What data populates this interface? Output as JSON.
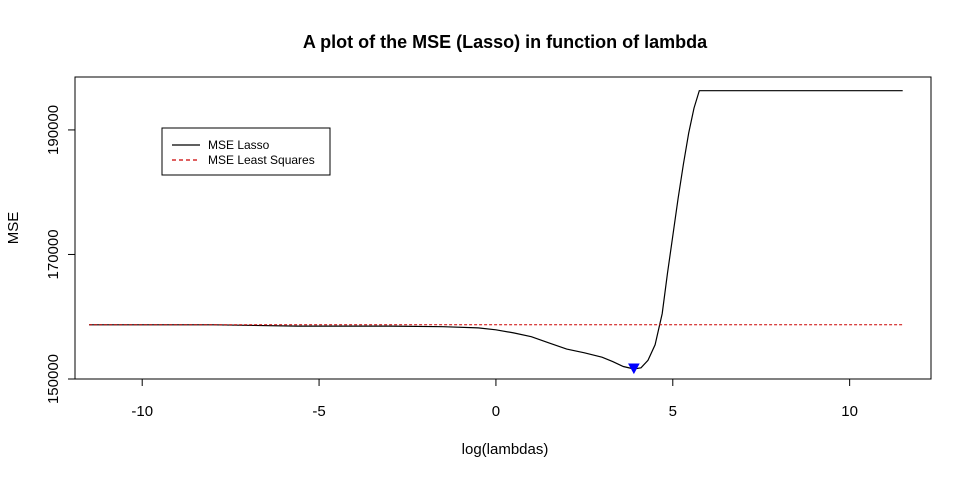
{
  "chart_data": {
    "type": "line",
    "title": "A plot of the MSE (Lasso) in function of lambda",
    "xlabel": "log(lambdas)",
    "ylabel": "MSE",
    "xlim": [
      -11.9,
      12.3
    ],
    "ylim": [
      150000,
      198500
    ],
    "xticks": [
      -10,
      -5,
      0,
      5,
      10
    ],
    "xtick_labels": [
      "-10",
      "-5",
      "0",
      "5",
      "10"
    ],
    "yticks": [
      150000,
      170000,
      190000
    ],
    "ytick_labels": [
      "150000",
      "170000",
      "190000"
    ],
    "grid": false,
    "legend_position": "top-left",
    "legend": [
      {
        "label": "MSE Lasso",
        "color": "#000000",
        "style": "solid"
      },
      {
        "label": "MSE Least Squares",
        "color": "#cc0000",
        "style": "dashed"
      }
    ],
    "series": [
      {
        "name": "MSE Lasso",
        "color": "#000000",
        "style": "solid",
        "x": [
          -11.5,
          -8,
          -5.6,
          -3,
          -1.5,
          -0.5,
          0,
          0.5,
          1,
          1.5,
          2,
          2.5,
          3,
          3.3,
          3.6,
          3.9,
          4.1,
          4.3,
          4.5,
          4.7,
          4.85,
          5,
          5.15,
          5.3,
          5.45,
          5.6,
          5.75,
          6,
          8,
          10,
          11.5
        ],
        "y": [
          158700,
          158700,
          158500,
          158500,
          158400,
          158200,
          157900,
          157400,
          156800,
          155800,
          154800,
          154200,
          153500,
          152800,
          152000,
          151600,
          151800,
          153000,
          155500,
          160500,
          167000,
          173000,
          179000,
          184500,
          189500,
          193500,
          196300,
          196300,
          196300,
          196300,
          196300
        ]
      },
      {
        "name": "MSE Least Squares",
        "color": "#cc0000",
        "style": "dashed",
        "x": [
          -11.5,
          11.5
        ],
        "y": [
          158700,
          158700
        ]
      }
    ],
    "marker": {
      "x": 3.9,
      "y": 151600,
      "color": "#0000ff",
      "shape": "triangle-down"
    }
  }
}
